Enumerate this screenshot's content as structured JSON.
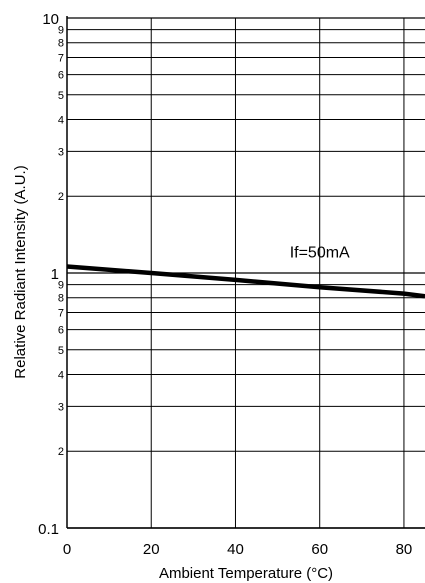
{
  "chart_data": {
    "type": "line",
    "xlabel": "Ambient Temperature (°C)",
    "ylabel": "Relative Radiant Intensity (A.U.)",
    "xlim": [
      0,
      85
    ],
    "ylim": [
      0.1,
      10
    ],
    "y_scale": "log",
    "grid": true,
    "x_ticks": [
      "0",
      "20",
      "40",
      "60",
      "80"
    ],
    "x_tick_values": [
      0,
      20,
      40,
      60,
      80
    ],
    "y_major_ticks": [
      {
        "label": "0.1",
        "value": 0.1
      },
      {
        "label": "1",
        "value": 1
      },
      {
        "label": "10",
        "value": 10
      }
    ],
    "y_minor_ticks": [
      {
        "label": "2",
        "value": 0.2
      },
      {
        "label": "3",
        "value": 0.3
      },
      {
        "label": "4",
        "value": 0.4
      },
      {
        "label": "5",
        "value": 0.5
      },
      {
        "label": "6",
        "value": 0.6
      },
      {
        "label": "7",
        "value": 0.7
      },
      {
        "label": "8",
        "value": 0.8
      },
      {
        "label": "9",
        "value": 0.9
      },
      {
        "label": "2",
        "value": 2
      },
      {
        "label": "3",
        "value": 3
      },
      {
        "label": "4",
        "value": 4
      },
      {
        "label": "5",
        "value": 5
      },
      {
        "label": "6",
        "value": 6
      },
      {
        "label": "7",
        "value": 7
      },
      {
        "label": "8",
        "value": 8
      },
      {
        "label": "9",
        "value": 9
      }
    ],
    "series": [
      {
        "x": [
          0,
          20,
          40,
          60,
          80,
          85
        ],
        "y": [
          1.06,
          1.0,
          0.94,
          0.88,
          0.83,
          0.81
        ]
      }
    ],
    "annotations": [
      {
        "text": "If=50mA",
        "x": 60,
        "y": 1.15
      }
    ]
  }
}
